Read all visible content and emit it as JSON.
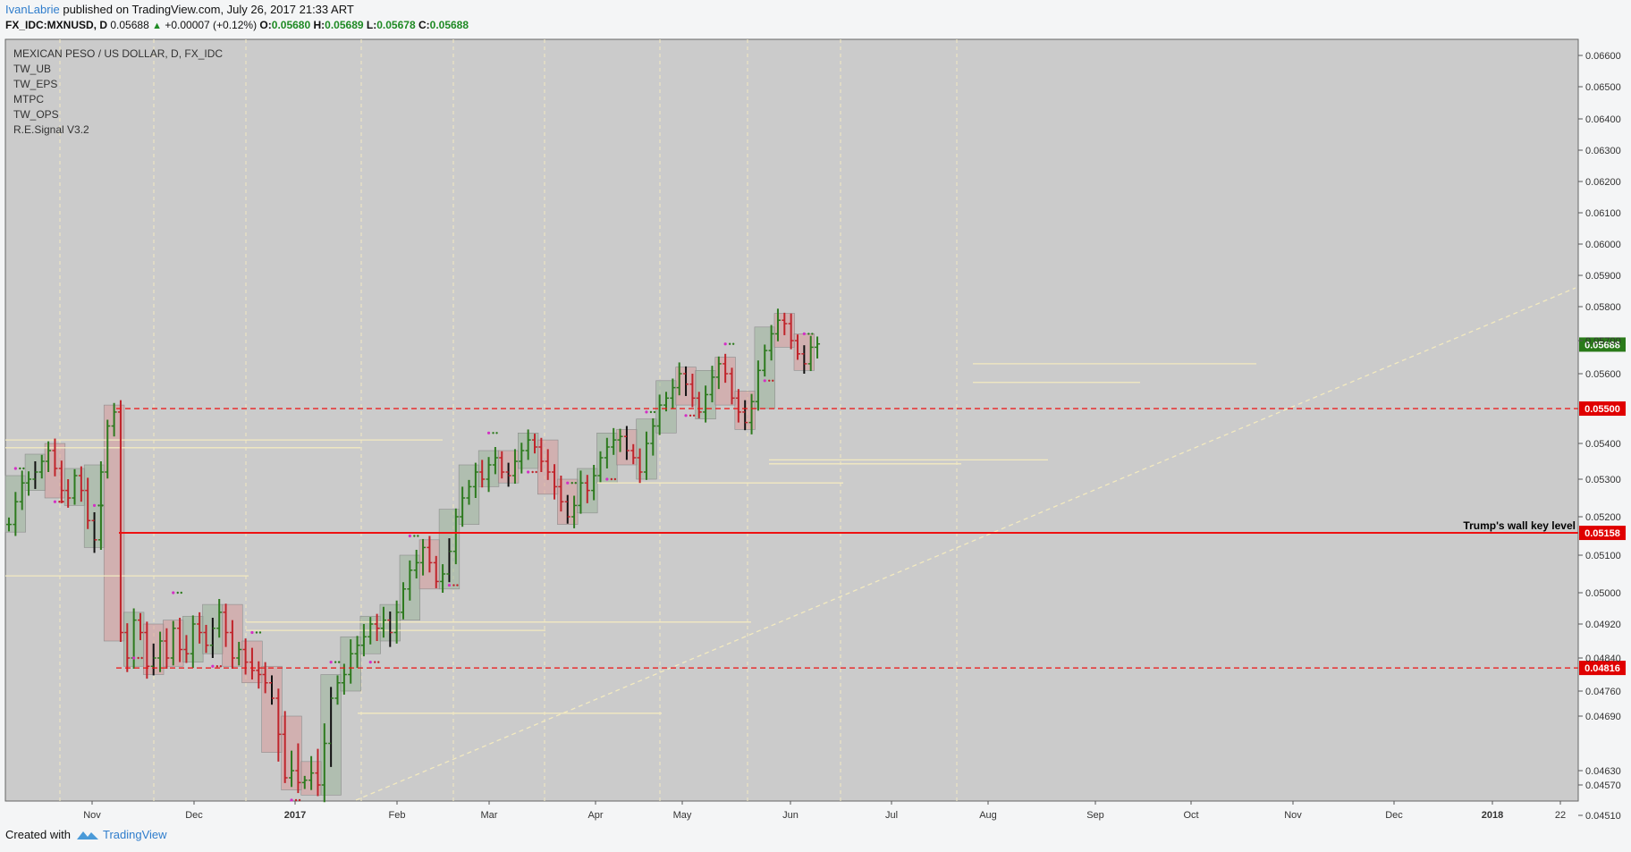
{
  "header": {
    "author": "IvanLabrie",
    "published": "published on TradingView.com, July 26, 2017 21:33 ART",
    "symbol": "FX_IDC:MXNUSD, D",
    "last": "0.05688",
    "change": "+0.00007 (+0.12%)",
    "o_label": "O:",
    "o": "0.05680",
    "h_label": "H:",
    "h": "0.05689",
    "l_label": "L:",
    "l": "0.05678",
    "c_label": "C:",
    "c": "0.05688"
  },
  "legend": {
    "title": "MEXICAN PESO / US DOLLAR, D, FX_IDC",
    "indicators": [
      "TW_UB",
      "TW_EPS",
      "MTPC",
      "TW_OPS",
      "R.E.Signal V3.2"
    ]
  },
  "footer": {
    "created": "Created with",
    "brand": "TradingView"
  },
  "colors": {
    "plot_bg": "#cbcbcb",
    "up": "#2d7a1e",
    "down": "#c0242b",
    "level_red": "#ee1111",
    "price_tag": "#2a7a1a",
    "key_tag": "#e00000",
    "box_green": "#9bb59a",
    "box_red": "#d79a9a",
    "yellow_line": "#f3eac0",
    "magenta": "#d32fc4"
  },
  "chart_data": {
    "type": "candlestick",
    "title": "MEXICAN PESO / US DOLLAR, D, FX_IDC",
    "ylim": [
      0.0448,
      0.0665
    ],
    "y_ticks": [
      "0.06600",
      "0.06500",
      "0.06400",
      "0.06300",
      "0.06200",
      "0.06100",
      "0.06000",
      "0.05900",
      "0.05800",
      "0.05700",
      "0.05600",
      "0.05400",
      "0.05300",
      "0.05200",
      "0.05100",
      "0.05000",
      "0.04920",
      "0.04840",
      "0.04760",
      "0.04690",
      "0.04630",
      "0.04570",
      "0.04510"
    ],
    "x_ticks": [
      "Nov",
      "Dec",
      "2017",
      "Feb",
      "Mar",
      "Apr",
      "May",
      "Jun",
      "Jul",
      "Aug",
      "Sep",
      "Oct",
      "Nov",
      "Dec",
      "2018",
      "22"
    ],
    "last_price": "0.05688",
    "levels": [
      {
        "value": 0.055,
        "label": "0.05500",
        "style": "dashed"
      },
      {
        "value": 0.05158,
        "label": "0.05158",
        "style": "solid",
        "annotation": "Trump's wall key level"
      },
      {
        "value": 0.04816,
        "label": "0.04816",
        "style": "dashed"
      }
    ],
    "trendline": {
      "x": [
        "2017-01-20",
        "2017-11-20"
      ],
      "y": [
        0.0454,
        0.0585
      ]
    },
    "grid": false,
    "ohlc_close_path": [
      0.0518,
      0.0524,
      0.0529,
      0.053,
      0.0532,
      0.0535,
      0.0538,
      0.0533,
      0.0527,
      0.0525,
      0.0531,
      0.0527,
      0.0519,
      0.0514,
      0.0532,
      0.0545,
      0.0549,
      0.049,
      0.0484,
      0.0493,
      0.049,
      0.0482,
      0.0484,
      0.0488,
      0.0484,
      0.0491,
      0.0486,
      0.0485,
      0.0492,
      0.049,
      0.0487,
      0.0491,
      0.0495,
      0.049,
      0.0484,
      0.0486,
      0.0483,
      0.0481,
      0.048,
      0.0478,
      0.0474,
      0.0467,
      0.046,
      0.0463,
      0.0458,
      0.0459,
      0.0462,
      0.0457,
      0.0466,
      0.0474,
      0.0478,
      0.048,
      0.0485,
      0.0487,
      0.0489,
      0.0492,
      0.0491,
      0.0493,
      0.049,
      0.0495,
      0.0501,
      0.0506,
      0.0508,
      0.0512,
      0.0508,
      0.0503,
      0.0505,
      0.0511,
      0.052,
      0.0525,
      0.0528,
      0.0532,
      0.053,
      0.0534,
      0.0536,
      0.0532,
      0.0531,
      0.0535,
      0.0538,
      0.0541,
      0.0539,
      0.0535,
      0.0532,
      0.0528,
      0.0524,
      0.052,
      0.0523,
      0.0529,
      0.0527,
      0.0531,
      0.0536,
      0.0539,
      0.0541,
      0.0542,
      0.0538,
      0.0536,
      0.0532,
      0.054,
      0.0545,
      0.0551,
      0.0553,
      0.0556,
      0.056,
      0.0557,
      0.0553,
      0.0549,
      0.0554,
      0.0559,
      0.0563,
      0.056,
      0.0553,
      0.0549,
      0.0546,
      0.0552,
      0.0561,
      0.0567,
      0.0572,
      0.0576,
      0.0575,
      0.057,
      0.0566,
      0.0563,
      0.0568,
      0.0569
    ]
  }
}
